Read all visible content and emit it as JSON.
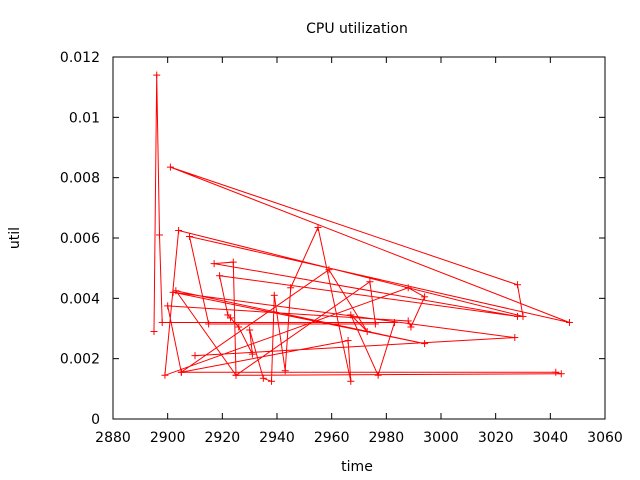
{
  "chart_data": {
    "type": "line",
    "title": "CPU utilization",
    "xlabel": "time",
    "ylabel": "util",
    "xlim": [
      2880,
      3060
    ],
    "ylim": [
      0,
      0.012
    ],
    "xticks": [
      "2880",
      "2900",
      "2920",
      "2940",
      "2960",
      "2980",
      "3000",
      "3020",
      "3040",
      "3060"
    ],
    "yticks": [
      "0",
      "0.002",
      "0.004",
      "0.006",
      "0.008",
      "0.01",
      "0.012"
    ],
    "grid": false,
    "legend": "none",
    "series_color": "#ff0000",
    "marker": "plus",
    "series": [
      {
        "points": [
          [
            2895,
            0.0029
          ],
          [
            2896,
            0.0114
          ],
          [
            2897,
            0.0061
          ],
          [
            2898,
            0.0032
          ],
          [
            2983,
            0.0032
          ],
          [
            2977,
            0.00145
          ],
          [
            2967,
            0.00345
          ],
          [
            2973,
            0.0029
          ],
          [
            2959,
            0.00495
          ],
          [
            2905,
            0.00155
          ],
          [
            2900,
            0.00375
          ],
          [
            2988,
            0.00325
          ],
          [
            2989,
            0.00305
          ],
          [
            2994,
            0.00405
          ],
          [
            2988,
            0.00435
          ],
          [
            2899,
            0.00145
          ],
          [
            2904,
            0.00625
          ],
          [
            3030,
            0.0034
          ],
          [
            3028,
            0.00445
          ],
          [
            2901,
            0.00835
          ],
          [
            3047,
            0.0032
          ],
          [
            2908,
            0.00605
          ],
          [
            2915,
            0.00315
          ],
          [
            2976,
            0.00315
          ],
          [
            2974,
            0.00455
          ],
          [
            2925,
            0.00145
          ],
          [
            2924,
            0.0052
          ],
          [
            2917,
            0.00515
          ],
          [
            3028,
            0.0034
          ],
          [
            2919,
            0.00475
          ],
          [
            2922,
            0.00345
          ],
          [
            2923,
            0.00335
          ],
          [
            2926,
            0.00305
          ],
          [
            2931,
            0.00215
          ],
          [
            2930,
            0.00295
          ],
          [
            2935,
            0.00135
          ],
          [
            2938,
            0.00125
          ],
          [
            2939,
            0.0041
          ],
          [
            2943,
            0.0016
          ],
          [
            2945,
            0.00435
          ],
          [
            2955,
            0.00635
          ],
          [
            2967,
            0.00125
          ],
          [
            2966,
            0.0026
          ],
          [
            2905,
            0.00155
          ],
          [
            3042,
            0.00155
          ],
          [
            3044,
            0.0015
          ],
          [
            2925,
            0.00145
          ],
          [
            2903,
            0.00425
          ],
          [
            2994,
            0.0025
          ],
          [
            2902,
            0.0042
          ],
          [
            3027,
            0.0027
          ],
          [
            2910,
            0.0021
          ]
        ]
      }
    ]
  }
}
